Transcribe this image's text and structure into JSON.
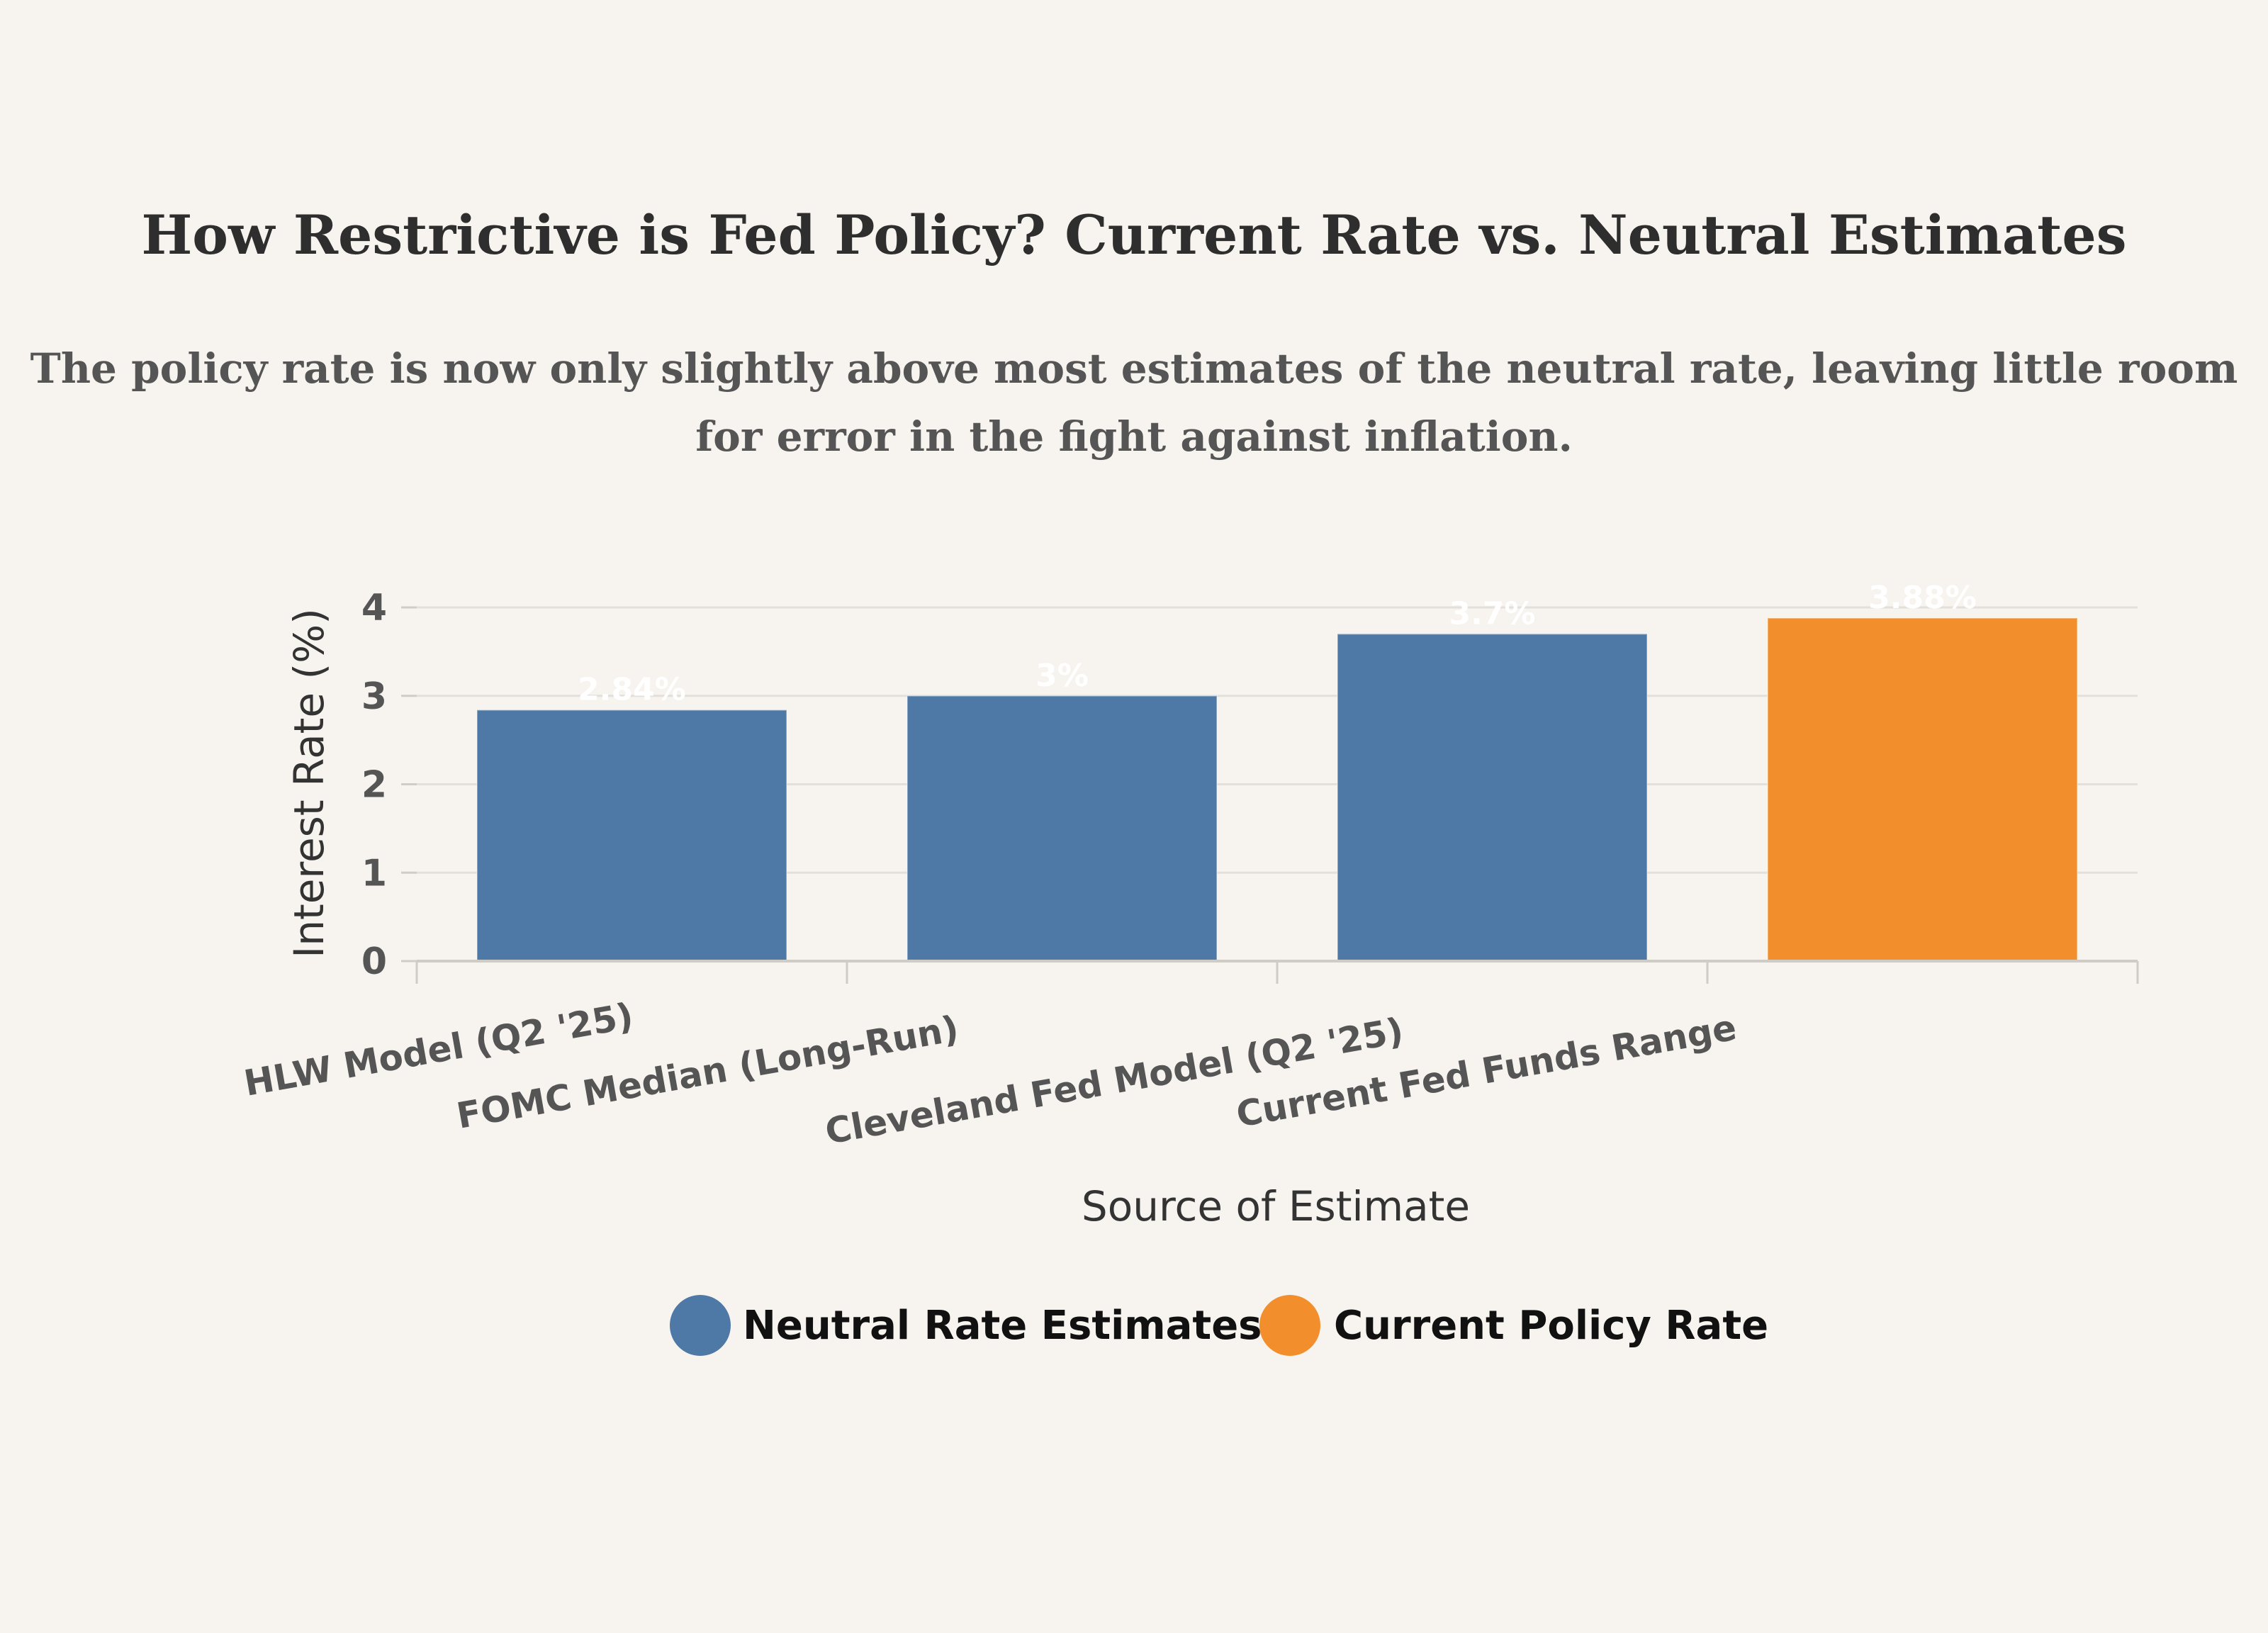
{
  "chart_data": {
    "type": "bar",
    "title": "How Restrictive is Fed Policy? Current Rate vs. Neutral Estimates",
    "subtitle_lines": [
      "The policy rate is now only slightly above most estimates of the neutral rate, leaving little room",
      "for error in the fight against inflation."
    ],
    "xlabel": "Source of Estimate",
    "ylabel": "Interest Rate (%)",
    "ylim": [
      0,
      4
    ],
    "yticks": [
      0,
      1,
      2,
      3,
      4
    ],
    "gridlines": true,
    "categories": [
      "HLW Model (Q2 '25)",
      "FOMC Median (Long-Run)",
      "Cleveland Fed Model (Q2 '25)",
      "Current Fed Funds Range"
    ],
    "values": [
      2.84,
      3.0,
      3.7,
      3.88
    ],
    "data_labels": [
      "2.84%",
      "3%",
      "3.7%",
      "3.88%"
    ],
    "bar_series": [
      "Neutral Rate Estimates",
      "Neutral Rate Estimates",
      "Neutral Rate Estimates",
      "Current Policy Rate"
    ],
    "legend": [
      {
        "name": "Neutral Rate Estimates",
        "color": "#4e79a7"
      },
      {
        "name": "Current Policy Rate",
        "color": "#f28e2b"
      }
    ],
    "legend_position": "bottom-center"
  }
}
